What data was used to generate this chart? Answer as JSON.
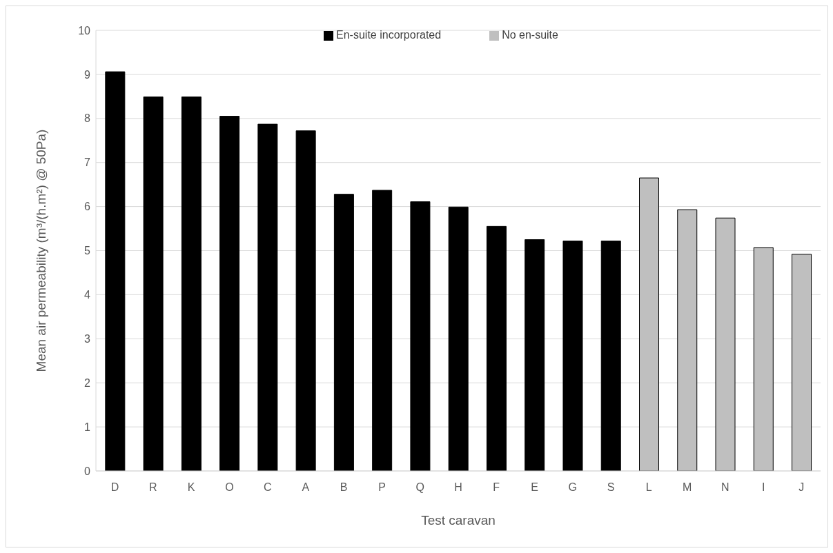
{
  "chart_data": {
    "type": "bar",
    "xlabel": "Test caravan",
    "ylabel": "Mean air permeability (m³/(h.m²) @ 50Pa)",
    "categories": [
      "D",
      "R",
      "K",
      "O",
      "C",
      "A",
      "B",
      "P",
      "Q",
      "H",
      "F",
      "E",
      "G",
      "S",
      "L",
      "M",
      "N",
      "I",
      "J"
    ],
    "series": [
      {
        "name": "En-suite incorporated",
        "color": "#000000",
        "values": [
          9.06,
          8.49,
          8.49,
          8.05,
          7.87,
          7.72,
          6.28,
          6.37,
          6.11,
          5.99,
          5.55,
          5.25,
          5.22,
          5.22,
          null,
          null,
          null,
          null,
          null
        ]
      },
      {
        "name": "No en-suite",
        "color": "#bfbfbf",
        "values": [
          null,
          null,
          null,
          null,
          null,
          null,
          null,
          null,
          null,
          null,
          null,
          null,
          null,
          null,
          6.65,
          5.93,
          5.74,
          5.07,
          4.92
        ]
      }
    ],
    "ylim": [
      0,
      10
    ],
    "yticks": [
      0,
      1,
      2,
      3,
      4,
      5,
      6,
      7,
      8,
      9,
      10
    ],
    "grid": "y",
    "legend": "top"
  }
}
